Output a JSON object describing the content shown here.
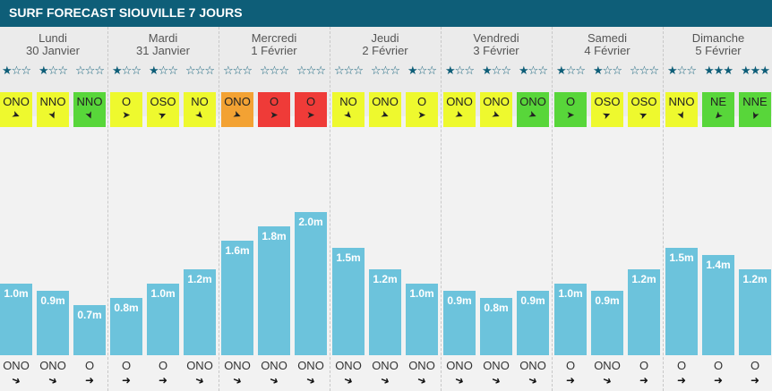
{
  "title": "SURF FORECAST SIOUVILLE 7 JOURS",
  "colors": {
    "header_bg": "#0e5e78",
    "bar": "#6cc3dc",
    "wind_yellow": "#eef92e",
    "wind_green": "#58d63a",
    "wind_orange": "#f3a233",
    "wind_red": "#ef3b38"
  },
  "days": [
    {
      "name": "Lundi",
      "date": "30 Janvier"
    },
    {
      "name": "Mardi",
      "date": "31 Janvier"
    },
    {
      "name": "Mercredi",
      "date": "1 Février"
    },
    {
      "name": "Jeudi",
      "date": "2 Février"
    },
    {
      "name": "Vendredi",
      "date": "3 Février"
    },
    {
      "name": "Samedi",
      "date": "4 Février"
    },
    {
      "name": "Dimanche",
      "date": "5 Février"
    }
  ],
  "slots": [
    {
      "stars": 1,
      "wind": "ONO",
      "wind_color": "yellow",
      "wind_deg": 292,
      "wave": 1.0,
      "wave_label": "1.0m",
      "swell": "ONO",
      "swell_deg": 292
    },
    {
      "stars": 1,
      "wind": "NNO",
      "wind_color": "yellow",
      "wind_deg": 337,
      "wave": 0.9,
      "wave_label": "0.9m",
      "swell": "ONO",
      "swell_deg": 292
    },
    {
      "stars": 0,
      "wind": "NNO",
      "wind_color": "green",
      "wind_deg": 337,
      "wave": 0.7,
      "wave_label": "0.7m",
      "swell": "O",
      "swell_deg": 270
    },
    {
      "stars": 1,
      "wind": "O",
      "wind_color": "yellow",
      "wind_deg": 270,
      "wave": 0.8,
      "wave_label": "0.8m",
      "swell": "O",
      "swell_deg": 270
    },
    {
      "stars": 1,
      "wind": "OSO",
      "wind_color": "yellow",
      "wind_deg": 247,
      "wave": 1.0,
      "wave_label": "1.0m",
      "swell": "O",
      "swell_deg": 270
    },
    {
      "stars": 0,
      "wind": "NO",
      "wind_color": "yellow",
      "wind_deg": 315,
      "wave": 1.2,
      "wave_label": "1.2m",
      "swell": "ONO",
      "swell_deg": 292
    },
    {
      "stars": 0,
      "wind": "ONO",
      "wind_color": "orange",
      "wind_deg": 292,
      "wave": 1.6,
      "wave_label": "1.6m",
      "swell": "ONO",
      "swell_deg": 292
    },
    {
      "stars": 0,
      "wind": "O",
      "wind_color": "red",
      "wind_deg": 270,
      "wave": 1.8,
      "wave_label": "1.8m",
      "swell": "ONO",
      "swell_deg": 292
    },
    {
      "stars": 0,
      "wind": "O",
      "wind_color": "red",
      "wind_deg": 270,
      "wave": 2.0,
      "wave_label": "2.0m",
      "swell": "ONO",
      "swell_deg": 292
    },
    {
      "stars": 0,
      "wind": "NO",
      "wind_color": "yellow",
      "wind_deg": 315,
      "wave": 1.5,
      "wave_label": "1.5m",
      "swell": "ONO",
      "swell_deg": 292
    },
    {
      "stars": 0,
      "wind": "ONO",
      "wind_color": "yellow",
      "wind_deg": 292,
      "wave": 1.2,
      "wave_label": "1.2m",
      "swell": "ONO",
      "swell_deg": 292
    },
    {
      "stars": 1,
      "wind": "O",
      "wind_color": "yellow",
      "wind_deg": 270,
      "wave": 1.0,
      "wave_label": "1.0m",
      "swell": "ONO",
      "swell_deg": 292
    },
    {
      "stars": 1,
      "wind": "ONO",
      "wind_color": "yellow",
      "wind_deg": 292,
      "wave": 0.9,
      "wave_label": "0.9m",
      "swell": "ONO",
      "swell_deg": 292
    },
    {
      "stars": 1,
      "wind": "ONO",
      "wind_color": "yellow",
      "wind_deg": 292,
      "wave": 0.8,
      "wave_label": "0.8m",
      "swell": "ONO",
      "swell_deg": 292
    },
    {
      "stars": 1,
      "wind": "ONO",
      "wind_color": "green",
      "wind_deg": 292,
      "wave": 0.9,
      "wave_label": "0.9m",
      "swell": "ONO",
      "swell_deg": 292
    },
    {
      "stars": 1,
      "wind": "O",
      "wind_color": "green",
      "wind_deg": 270,
      "wave": 1.0,
      "wave_label": "1.0m",
      "swell": "O",
      "swell_deg": 270
    },
    {
      "stars": 1,
      "wind": "OSO",
      "wind_color": "yellow",
      "wind_deg": 247,
      "wave": 0.9,
      "wave_label": "0.9m",
      "swell": "ONO",
      "swell_deg": 292
    },
    {
      "stars": 0,
      "wind": "OSO",
      "wind_color": "yellow",
      "wind_deg": 247,
      "wave": 1.2,
      "wave_label": "1.2m",
      "swell": "O",
      "swell_deg": 270
    },
    {
      "stars": 1,
      "wind": "NNO",
      "wind_color": "yellow",
      "wind_deg": 337,
      "wave": 1.5,
      "wave_label": "1.5m",
      "swell": "O",
      "swell_deg": 270
    },
    {
      "stars": 3,
      "wind": "NE",
      "wind_color": "green",
      "wind_deg": 45,
      "wave": 1.4,
      "wave_label": "1.4m",
      "swell": "O",
      "swell_deg": 270
    },
    {
      "stars": 3,
      "wind": "NNE",
      "wind_color": "green",
      "wind_deg": 22,
      "wave": 1.2,
      "wave_label": "1.2m",
      "swell": "O",
      "swell_deg": 270
    }
  ],
  "chart_data": {
    "type": "bar",
    "title": "SURF FORECAST SIOUVILLE 7 JOURS",
    "categories": [
      "Lundi 30 Janvier",
      "Mardi 31 Janvier",
      "Mercredi 1 Février",
      "Jeudi 2 Février",
      "Vendredi 3 Février",
      "Samedi 4 Février",
      "Dimanche 5 Février"
    ],
    "values_per_slot": [
      1.0,
      0.9,
      0.7,
      0.8,
      1.0,
      1.2,
      1.6,
      1.8,
      2.0,
      1.5,
      1.2,
      1.0,
      0.9,
      0.8,
      0.9,
      1.0,
      0.9,
      1.2,
      1.5,
      1.4,
      1.2
    ],
    "slots_per_day": 3,
    "unit": "m",
    "grid": false
  }
}
